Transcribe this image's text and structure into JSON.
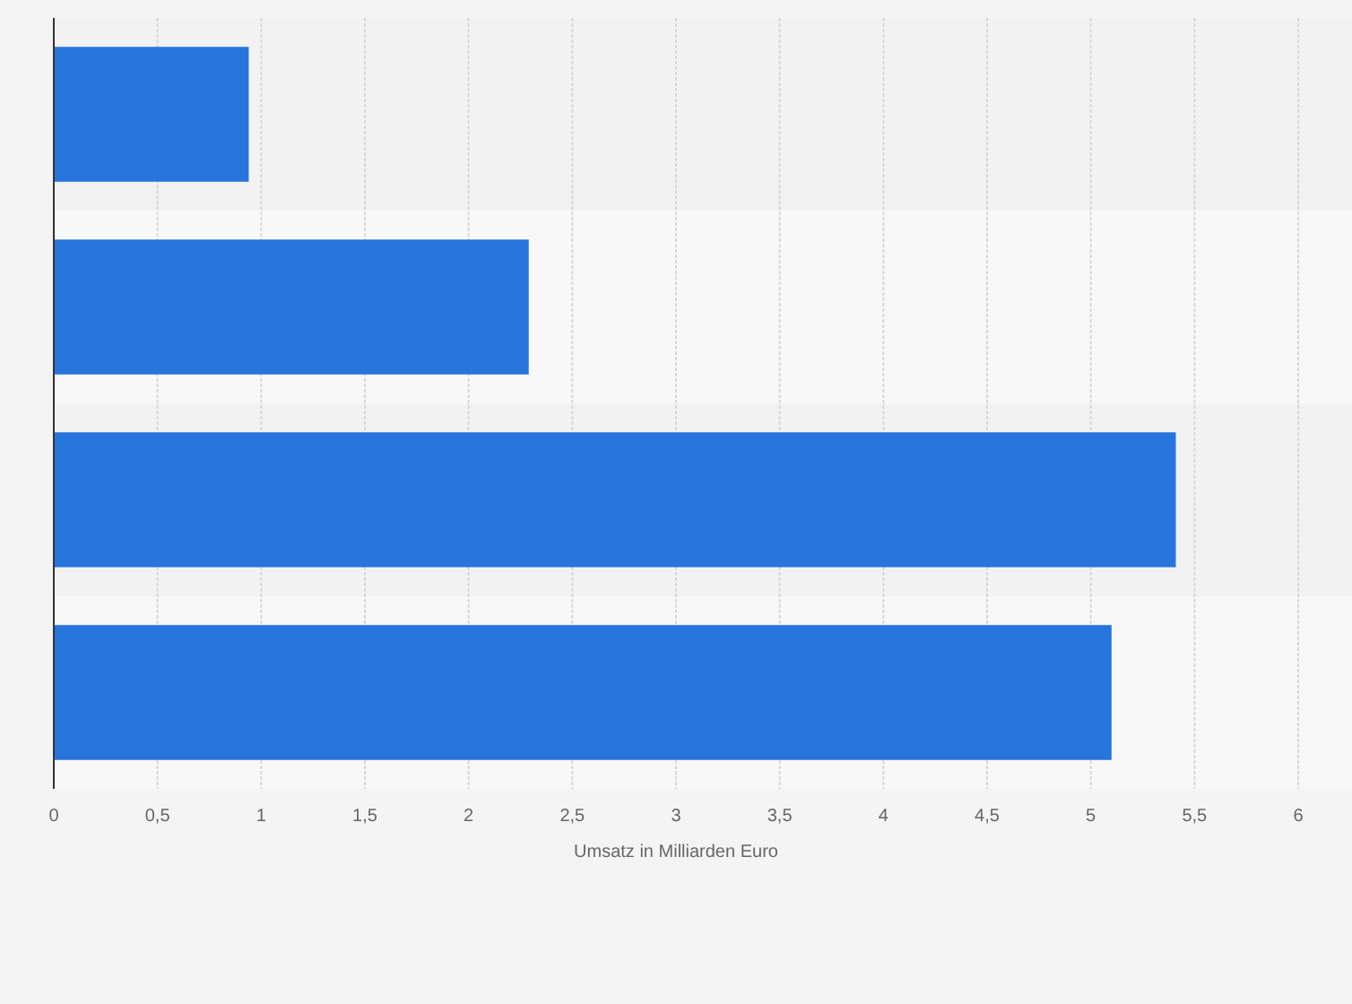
{
  "chart_data": {
    "type": "bar",
    "orientation": "horizontal",
    "categories": [
      null,
      null,
      null,
      null
    ],
    "values": [
      0.94,
      2.29,
      5.41,
      5.1
    ],
    "color": "#2775dc",
    "xlabel": "Umsatz in Milliarden Euro",
    "xlim": [
      0,
      6
    ],
    "xticks": [
      0,
      {
        "value": 0.5,
        "label": "0,5"
      },
      1,
      {
        "value": 1.5,
        "label": "1,5"
      },
      2,
      {
        "value": 2.5,
        "label": "2,5"
      },
      3,
      {
        "value": 3.5,
        "label": "3,5"
      },
      4,
      {
        "value": 4.5,
        "label": "4,5"
      },
      5,
      {
        "value": 5.5,
        "label": "5,5"
      },
      6
    ],
    "grid": "x"
  }
}
